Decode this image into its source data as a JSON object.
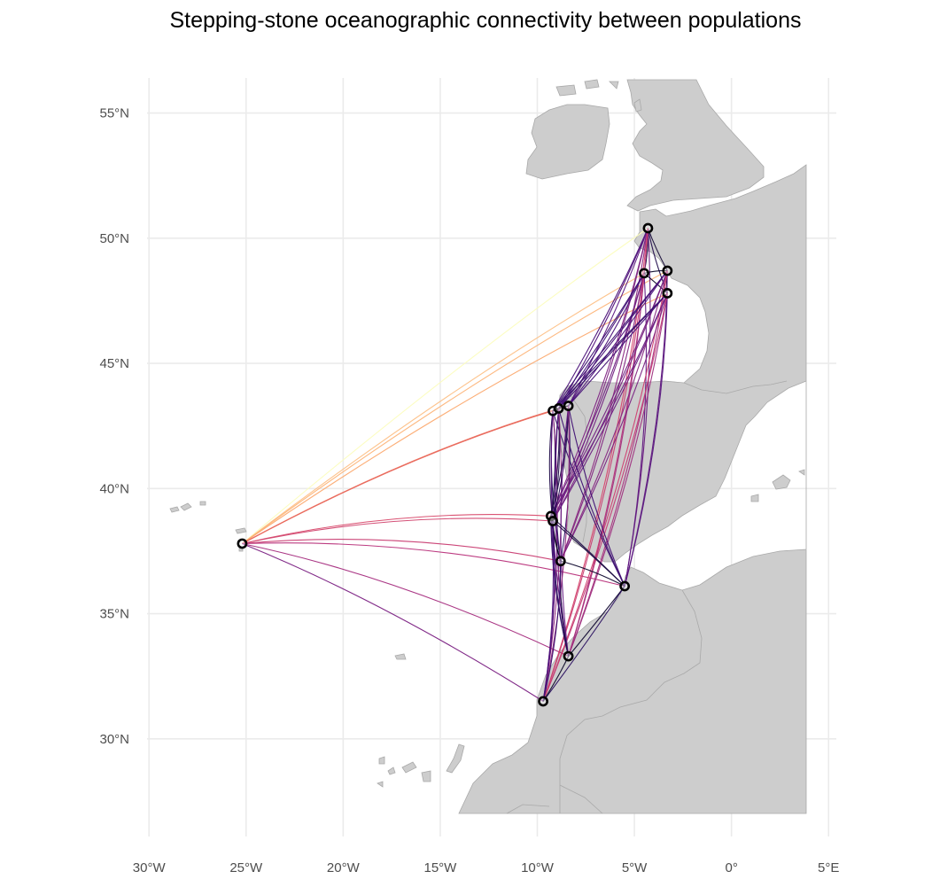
{
  "title": "Stepping-stone oceanographic connectivity between populations",
  "colors": {
    "land": "#cdcdcd",
    "land_stroke": "#a9a9a9",
    "grid": "#ebebeb",
    "point_stroke": "#000000",
    "point_fill": "#ffffff"
  },
  "axes": {
    "x_ticks": [
      {
        "value": -30,
        "label": "30°W"
      },
      {
        "value": -25,
        "label": "25°W"
      },
      {
        "value": -20,
        "label": "20°W"
      },
      {
        "value": -15,
        "label": "15°W"
      },
      {
        "value": -10,
        "label": "10°W"
      },
      {
        "value": -5,
        "label": "5°W"
      },
      {
        "value": 0,
        "label": "0°"
      },
      {
        "value": 5,
        "label": "5°E"
      }
    ],
    "y_ticks": [
      {
        "value": 30,
        "label": "30°N"
      },
      {
        "value": 35,
        "label": "35°N"
      },
      {
        "value": 40,
        "label": "40°N"
      },
      {
        "value": 45,
        "label": "45°N"
      },
      {
        "value": 50,
        "label": "50°N"
      },
      {
        "value": 55,
        "label": "55°N"
      }
    ],
    "xlim": [
      -30.1,
      5.4
    ],
    "ylim": [
      26.1,
      56.4
    ]
  },
  "populations": [
    {
      "id": "azores",
      "lon": -25.2,
      "lat": 37.8
    },
    {
      "id": "plymouth",
      "lon": -4.3,
      "lat": 50.4
    },
    {
      "id": "brittany-w",
      "lon": -4.5,
      "lat": 48.6
    },
    {
      "id": "brittany-n",
      "lon": -3.3,
      "lat": 48.7
    },
    {
      "id": "brittany-s",
      "lon": -3.3,
      "lat": 47.8
    },
    {
      "id": "galicia-a",
      "lon": -9.2,
      "lat": 43.1
    },
    {
      "id": "galicia-b",
      "lon": -8.9,
      "lat": 43.2
    },
    {
      "id": "galicia-c",
      "lon": -8.4,
      "lat": 43.3
    },
    {
      "id": "lisbon-a",
      "lon": -9.3,
      "lat": 38.9
    },
    {
      "id": "lisbon-b",
      "lon": -9.2,
      "lat": 38.7
    },
    {
      "id": "sines",
      "lon": -8.8,
      "lat": 37.1
    },
    {
      "id": "gibraltar",
      "lon": -5.5,
      "lat": 36.1
    },
    {
      "id": "morocco-n",
      "lon": -8.4,
      "lat": 33.3
    },
    {
      "id": "morocco-s",
      "lon": -9.7,
      "lat": 31.5
    }
  ],
  "connections": [
    {
      "from": "azores",
      "to": "plymouth",
      "color": "#fcfdbf"
    },
    {
      "from": "azores",
      "to": "brittany-w",
      "color": "#fdc086"
    },
    {
      "from": "azores",
      "to": "brittany-n",
      "color": "#fdb57a"
    },
    {
      "from": "azores",
      "to": "brittany-s",
      "color": "#fcaa70"
    },
    {
      "from": "azores",
      "to": "galicia-a",
      "color": "#f07a60"
    },
    {
      "from": "azores",
      "to": "galicia-b",
      "color": "#ed7460"
    },
    {
      "from": "azores",
      "to": "galicia-c",
      "color": "#e8695f"
    },
    {
      "from": "azores",
      "to": "lisbon-a",
      "color": "#d84a6b"
    },
    {
      "from": "azores",
      "to": "lisbon-b",
      "color": "#d24770"
    },
    {
      "from": "azores",
      "to": "sines",
      "color": "#c93d72"
    },
    {
      "from": "azores",
      "to": "gibraltar",
      "color": "#b8307a"
    },
    {
      "from": "azores",
      "to": "morocco-n",
      "color": "#a52c7e"
    },
    {
      "from": "azores",
      "to": "morocco-s",
      "color": "#7a1f82"
    },
    {
      "from": "plymouth",
      "to": "brittany-w",
      "color": "#1b0c41"
    },
    {
      "from": "plymouth",
      "to": "brittany-n",
      "color": "#150b37"
    },
    {
      "from": "plymouth",
      "to": "brittany-s",
      "color": "#240f4e"
    },
    {
      "from": "plymouth",
      "to": "galicia-a",
      "color": "#4a1078"
    },
    {
      "from": "plymouth",
      "to": "galicia-b",
      "color": "#51127c"
    },
    {
      "from": "plymouth",
      "to": "galicia-c",
      "color": "#5b1580"
    },
    {
      "from": "plymouth",
      "to": "lisbon-a",
      "color": "#7d2282"
    },
    {
      "from": "plymouth",
      "to": "lisbon-b",
      "color": "#802582"
    },
    {
      "from": "plymouth",
      "to": "sines",
      "color": "#8c2981"
    },
    {
      "from": "plymouth",
      "to": "gibraltar",
      "color": "#6a1a80"
    },
    {
      "from": "plymouth",
      "to": "morocco-n",
      "color": "#b5367a"
    },
    {
      "from": "plymouth",
      "to": "morocco-s",
      "color": "#d6456c"
    },
    {
      "from": "brittany-w",
      "to": "brittany-n",
      "color": "#0d0829"
    },
    {
      "from": "brittany-w",
      "to": "brittany-s",
      "color": "#120a32"
    },
    {
      "from": "brittany-w",
      "to": "galicia-a",
      "color": "#3b0f70"
    },
    {
      "from": "brittany-w",
      "to": "galicia-b",
      "color": "#42107a"
    },
    {
      "from": "brittany-w",
      "to": "galicia-c",
      "color": "#481078"
    },
    {
      "from": "brittany-w",
      "to": "lisbon-a",
      "color": "#6f1f81"
    },
    {
      "from": "brittany-w",
      "to": "lisbon-b",
      "color": "#722081"
    },
    {
      "from": "brittany-w",
      "to": "sines",
      "color": "#812581"
    },
    {
      "from": "brittany-w",
      "to": "gibraltar",
      "color": "#5e1680"
    },
    {
      "from": "brittany-w",
      "to": "morocco-n",
      "color": "#a3307e"
    },
    {
      "from": "brittany-w",
      "to": "morocco-s",
      "color": "#c83e73"
    },
    {
      "from": "brittany-n",
      "to": "brittany-s",
      "color": "#0b0724"
    },
    {
      "from": "brittany-n",
      "to": "galicia-a",
      "color": "#3f0f72"
    },
    {
      "from": "brittany-n",
      "to": "galicia-b",
      "color": "#440f76"
    },
    {
      "from": "brittany-n",
      "to": "galicia-c",
      "color": "#4d117b"
    },
    {
      "from": "brittany-n",
      "to": "lisbon-a",
      "color": "#742181"
    },
    {
      "from": "brittany-n",
      "to": "lisbon-b",
      "color": "#782281"
    },
    {
      "from": "brittany-n",
      "to": "sines",
      "color": "#862781"
    },
    {
      "from": "brittany-n",
      "to": "gibraltar",
      "color": "#621980"
    },
    {
      "from": "brittany-n",
      "to": "morocco-n",
      "color": "#a8327d"
    },
    {
      "from": "brittany-n",
      "to": "morocco-s",
      "color": "#cd4071"
    },
    {
      "from": "brittany-s",
      "to": "galicia-a",
      "color": "#360f6a"
    },
    {
      "from": "brittany-s",
      "to": "galicia-b",
      "color": "#3c0f70"
    },
    {
      "from": "brittany-s",
      "to": "galicia-c",
      "color": "#431076"
    },
    {
      "from": "brittany-s",
      "to": "lisbon-a",
      "color": "#681c81"
    },
    {
      "from": "brittany-s",
      "to": "lisbon-b",
      "color": "#6c1e81"
    },
    {
      "from": "brittany-s",
      "to": "sines",
      "color": "#7a2282"
    },
    {
      "from": "brittany-s",
      "to": "gibraltar",
      "color": "#57157e"
    },
    {
      "from": "brittany-s",
      "to": "morocco-n",
      "color": "#9e2f7f"
    },
    {
      "from": "brittany-s",
      "to": "morocco-s",
      "color": "#c43c75"
    },
    {
      "from": "galicia-a",
      "to": "galicia-b",
      "color": "#000004"
    },
    {
      "from": "galicia-a",
      "to": "galicia-c",
      "color": "#07061c"
    },
    {
      "from": "galicia-a",
      "to": "lisbon-a",
      "color": "#1e0c45"
    },
    {
      "from": "galicia-a",
      "to": "lisbon-b",
      "color": "#210d49"
    },
    {
      "from": "galicia-a",
      "to": "sines",
      "color": "#2c1160"
    },
    {
      "from": "galicia-a",
      "to": "gibraltar",
      "color": "#3a0f6e"
    },
    {
      "from": "galicia-a",
      "to": "morocco-n",
      "color": "#5a157f"
    },
    {
      "from": "galicia-a",
      "to": "morocco-s",
      "color": "#8a2881"
    },
    {
      "from": "galicia-b",
      "to": "galicia-c",
      "color": "#05041a"
    },
    {
      "from": "galicia-b",
      "to": "lisbon-a",
      "color": "#200c48"
    },
    {
      "from": "galicia-b",
      "to": "lisbon-b",
      "color": "#230e4c"
    },
    {
      "from": "galicia-b",
      "to": "sines",
      "color": "#2e1163"
    },
    {
      "from": "galicia-b",
      "to": "gibraltar",
      "color": "#3d0f71"
    },
    {
      "from": "galicia-b",
      "to": "morocco-n",
      "color": "#5c1580"
    },
    {
      "from": "galicia-b",
      "to": "morocco-s",
      "color": "#8e2a81"
    },
    {
      "from": "galicia-c",
      "to": "lisbon-a",
      "color": "#240f4f"
    },
    {
      "from": "galicia-c",
      "to": "lisbon-b",
      "color": "#271055"
    },
    {
      "from": "galicia-c",
      "to": "sines",
      "color": "#321267"
    },
    {
      "from": "galicia-c",
      "to": "gibraltar",
      "color": "#400f73"
    },
    {
      "from": "galicia-c",
      "to": "morocco-n",
      "color": "#621980"
    },
    {
      "from": "galicia-c",
      "to": "morocco-s",
      "color": "#932b80"
    },
    {
      "from": "lisbon-a",
      "to": "lisbon-b",
      "color": "#000004"
    },
    {
      "from": "lisbon-a",
      "to": "sines",
      "color": "#0a0722"
    },
    {
      "from": "lisbon-a",
      "to": "gibraltar",
      "color": "#1c0c43"
    },
    {
      "from": "lisbon-a",
      "to": "morocco-n",
      "color": "#2f1163"
    },
    {
      "from": "lisbon-a",
      "to": "morocco-s",
      "color": "#4e117b"
    },
    {
      "from": "lisbon-b",
      "to": "sines",
      "color": "#08061f"
    },
    {
      "from": "lisbon-b",
      "to": "gibraltar",
      "color": "#1a0b40"
    },
    {
      "from": "lisbon-b",
      "to": "morocco-n",
      "color": "#2d1161"
    },
    {
      "from": "lisbon-b",
      "to": "morocco-s",
      "color": "#4b107a"
    },
    {
      "from": "sines",
      "to": "gibraltar",
      "color": "#100a2f"
    },
    {
      "from": "sines",
      "to": "morocco-n",
      "color": "#1f0c47"
    },
    {
      "from": "sines",
      "to": "morocco-s",
      "color": "#3b0f70"
    },
    {
      "from": "gibraltar",
      "to": "morocco-n",
      "color": "#120a31"
    },
    {
      "from": "gibraltar",
      "to": "morocco-s",
      "color": "#2a1060"
    },
    {
      "from": "morocco-n",
      "to": "morocco-s",
      "color": "#0e0929"
    }
  ]
}
